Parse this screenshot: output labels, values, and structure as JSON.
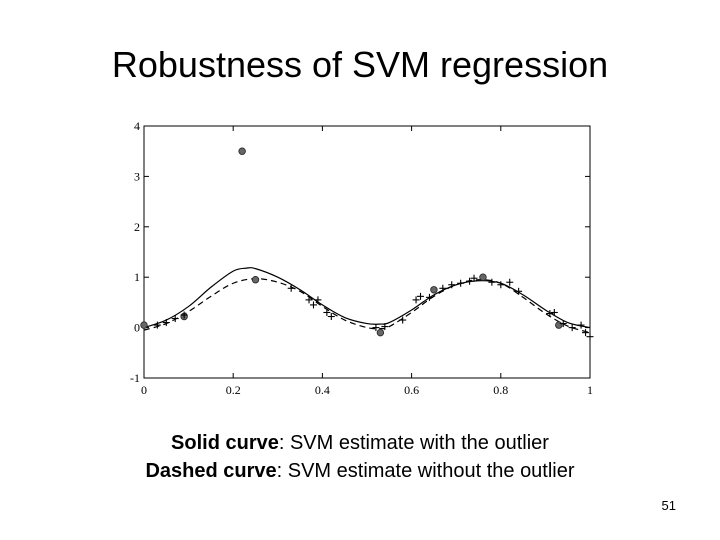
{
  "slide": {
    "title": "Robustness of SVM regression",
    "page_number": "51"
  },
  "caption": {
    "line1_bold": "Solid curve",
    "line1_rest": ":  SVM estimate with the outlier",
    "line2_bold": "Dashed curve",
    "line2_rest": ": SVM estimate without the outlier"
  },
  "chart_data": {
    "type": "line",
    "xlim": [
      0,
      1
    ],
    "ylim": [
      -1,
      4
    ],
    "x_ticks": [
      "0",
      "0.2",
      "0.4",
      "0.6",
      "0.8",
      "1"
    ],
    "y_ticks": [
      "-1",
      "0",
      "1",
      "2",
      "3",
      "4"
    ],
    "grid": false,
    "series": [
      {
        "style": "solid",
        "x": [
          0,
          0.05,
          0.1,
          0.15,
          0.2,
          0.23,
          0.25,
          0.3,
          0.35,
          0.4,
          0.45,
          0.5,
          0.53,
          0.55,
          0.6,
          0.65,
          0.7,
          0.75,
          0.8,
          0.85,
          0.9,
          0.95,
          1
        ],
        "y": [
          0.0,
          0.15,
          0.42,
          0.8,
          1.12,
          1.18,
          1.17,
          1.0,
          0.75,
          0.45,
          0.2,
          0.08,
          0.07,
          0.1,
          0.35,
          0.65,
          0.85,
          0.93,
          0.88,
          0.65,
          0.35,
          0.1,
          0.0
        ]
      },
      {
        "style": "dashed",
        "x": [
          0,
          0.05,
          0.1,
          0.15,
          0.2,
          0.25,
          0.3,
          0.35,
          0.4,
          0.45,
          0.5,
          0.53,
          0.55,
          0.6,
          0.65,
          0.7,
          0.75,
          0.8,
          0.85,
          0.9,
          0.95,
          1
        ],
        "y": [
          -0.05,
          0.08,
          0.32,
          0.62,
          0.88,
          0.97,
          0.9,
          0.72,
          0.42,
          0.15,
          0.0,
          -0.02,
          0.02,
          0.3,
          0.62,
          0.85,
          0.95,
          0.88,
          0.6,
          0.28,
          0.03,
          -0.1
        ]
      }
    ],
    "data_points": [
      {
        "x": 0.0,
        "y": 0.05,
        "marker": "circle"
      },
      {
        "x": 0.09,
        "y": 0.22,
        "marker": "circle"
      },
      {
        "x": 0.22,
        "y": 3.5,
        "marker": "circle"
      },
      {
        "x": 0.25,
        "y": 0.95,
        "marker": "circle"
      },
      {
        "x": 0.53,
        "y": -0.1,
        "marker": "circle"
      },
      {
        "x": 0.65,
        "y": 0.75,
        "marker": "circle"
      },
      {
        "x": 0.76,
        "y": 1.0,
        "marker": "circle"
      },
      {
        "x": 0.93,
        "y": 0.05,
        "marker": "circle"
      },
      {
        "x": 0.03,
        "y": 0.05,
        "marker": "plus"
      },
      {
        "x": 0.05,
        "y": 0.1,
        "marker": "plus"
      },
      {
        "x": 0.07,
        "y": 0.18,
        "marker": "plus"
      },
      {
        "x": 0.09,
        "y": 0.25,
        "marker": "plus"
      },
      {
        "x": 0.33,
        "y": 0.78,
        "marker": "plus"
      },
      {
        "x": 0.37,
        "y": 0.55,
        "marker": "plus"
      },
      {
        "x": 0.38,
        "y": 0.45,
        "marker": "plus"
      },
      {
        "x": 0.39,
        "y": 0.55,
        "marker": "plus"
      },
      {
        "x": 0.41,
        "y": 0.3,
        "marker": "plus"
      },
      {
        "x": 0.42,
        "y": 0.22,
        "marker": "plus"
      },
      {
        "x": 0.52,
        "y": 0.0,
        "marker": "plus"
      },
      {
        "x": 0.54,
        "y": 0.02,
        "marker": "plus"
      },
      {
        "x": 0.58,
        "y": 0.15,
        "marker": "plus"
      },
      {
        "x": 0.61,
        "y": 0.55,
        "marker": "plus"
      },
      {
        "x": 0.62,
        "y": 0.62,
        "marker": "plus"
      },
      {
        "x": 0.64,
        "y": 0.6,
        "marker": "plus"
      },
      {
        "x": 0.67,
        "y": 0.78,
        "marker": "plus"
      },
      {
        "x": 0.69,
        "y": 0.85,
        "marker": "plus"
      },
      {
        "x": 0.71,
        "y": 0.88,
        "marker": "plus"
      },
      {
        "x": 0.73,
        "y": 0.92,
        "marker": "plus"
      },
      {
        "x": 0.74,
        "y": 0.98,
        "marker": "plus"
      },
      {
        "x": 0.78,
        "y": 0.9,
        "marker": "plus"
      },
      {
        "x": 0.8,
        "y": 0.85,
        "marker": "plus"
      },
      {
        "x": 0.82,
        "y": 0.9,
        "marker": "plus"
      },
      {
        "x": 0.84,
        "y": 0.72,
        "marker": "plus"
      },
      {
        "x": 0.91,
        "y": 0.28,
        "marker": "plus"
      },
      {
        "x": 0.92,
        "y": 0.3,
        "marker": "plus"
      },
      {
        "x": 0.94,
        "y": 0.08,
        "marker": "plus"
      },
      {
        "x": 0.96,
        "y": 0.0,
        "marker": "plus"
      },
      {
        "x": 0.98,
        "y": 0.05,
        "marker": "plus"
      },
      {
        "x": 0.99,
        "y": -0.1,
        "marker": "plus"
      },
      {
        "x": 1.0,
        "y": -0.18,
        "marker": "plus"
      }
    ],
    "colors": {
      "line": "#000000",
      "marker_fill": "#666666"
    }
  }
}
